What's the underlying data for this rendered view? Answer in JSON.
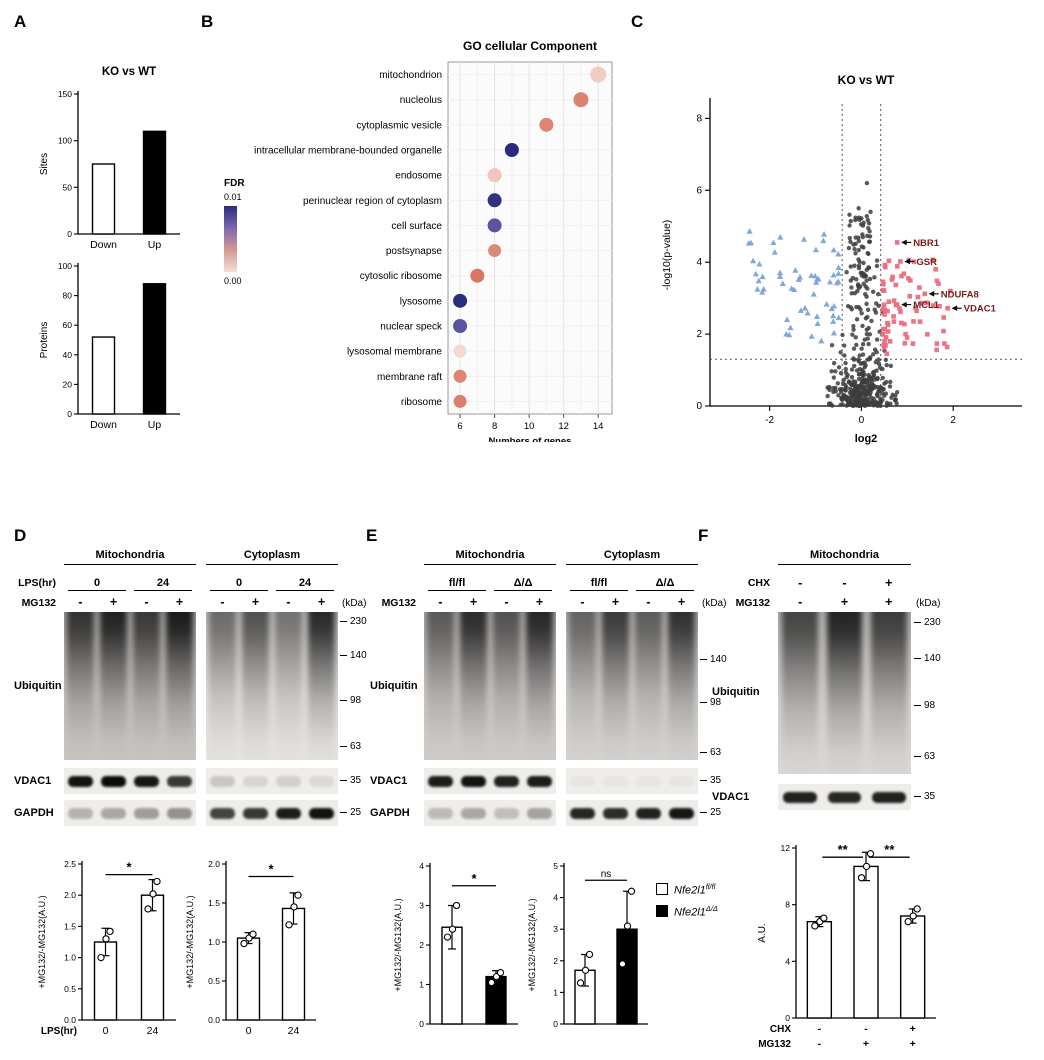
{
  "labels": {
    "A": "A",
    "B": "B",
    "C": "C",
    "D": "D",
    "E": "E",
    "F": "F"
  },
  "legendE": [
    {
      "base": "Nfe2l1",
      "sup": "fl/fl",
      "color": "#ffffff"
    },
    {
      "base": "Nfe2l1",
      "sup": "Δ/Δ",
      "color": "#000000"
    }
  ],
  "chart_data": [
    {
      "id": "A-sites",
      "type": "bar",
      "title": "KO vs WT",
      "ylabel": "Sites",
      "ylim": [
        0,
        150
      ],
      "yticks": [
        0,
        50,
        100,
        150
      ],
      "categories": [
        "Down",
        "Up"
      ],
      "values": [
        75,
        110
      ],
      "bar_colors": [
        "#ffffff",
        "#000000"
      ],
      "xrows": [
        {
          "label": "",
          "cells": [
            "Down",
            "Up"
          ]
        }
      ]
    },
    {
      "id": "A-proteins",
      "type": "bar",
      "ylabel": "Proteins",
      "ylim": [
        0,
        100
      ],
      "yticks": [
        0,
        20,
        40,
        60,
        80,
        100
      ],
      "categories": [
        "Down",
        "Up"
      ],
      "values": [
        52,
        88
      ],
      "bar_colors": [
        "#ffffff",
        "#000000"
      ],
      "xrows": [
        {
          "label": "",
          "cells": [
            "Down",
            "Up"
          ]
        }
      ]
    },
    {
      "id": "B-go",
      "type": "scatter",
      "title": "GO cellular Component",
      "xlabel": "Numbers of genes",
      "xlim": [
        5.3,
        14.8
      ],
      "xticks": [
        6,
        8,
        10,
        12,
        14
      ],
      "fdr_legend": {
        "title": "FDR",
        "max_label": "0.01",
        "min_label": "0.00",
        "gradient": [
          "#2d2a7d",
          "#7a68b0",
          "#d49a92",
          "#f6ddd5"
        ]
      },
      "rows": [
        {
          "term": "mitochondrion",
          "genes": 14,
          "fdr": 0.0005,
          "color": "#f2ccc3",
          "size": 8
        },
        {
          "term": "nucleolus",
          "genes": 13,
          "fdr": 0.002,
          "color": "#dd8271",
          "size": 7.5
        },
        {
          "term": "cytoplasmic vesicle",
          "genes": 11,
          "fdr": 0.002,
          "color": "#dd8472",
          "size": 7
        },
        {
          "term": "intracellular membrane-bounded organelle",
          "genes": 9,
          "fdr": 0.009,
          "color": "#2c2a7e",
          "size": 7
        },
        {
          "term": "endosome",
          "genes": 8,
          "fdr": 0.001,
          "color": "#f0c5bb",
          "size": 7
        },
        {
          "term": "perinuclear region of cytoplasm",
          "genes": 8,
          "fdr": 0.009,
          "color": "#35317f",
          "size": 7
        },
        {
          "term": "cell surface",
          "genes": 8,
          "fdr": 0.007,
          "color": "#5c53a0",
          "size": 7
        },
        {
          "term": "postsynapse",
          "genes": 8,
          "fdr": 0.002,
          "color": "#d98a7b",
          "size": 6.5
        },
        {
          "term": "cytosolic ribosome",
          "genes": 7,
          "fdr": 0.003,
          "color": "#d97666",
          "size": 7
        },
        {
          "term": "lysosome",
          "genes": 6,
          "fdr": 0.009,
          "color": "#282d7c",
          "size": 7
        },
        {
          "term": "nuclear speck",
          "genes": 6,
          "fdr": 0.007,
          "color": "#5b52a0",
          "size": 7
        },
        {
          "term": "lysosomal membrane",
          "genes": 6,
          "fdr": 0.0005,
          "color": "#f5d8d0",
          "size": 6.5
        },
        {
          "term": "membrane raft",
          "genes": 6,
          "fdr": 0.002,
          "color": "#dd8472",
          "size": 6.5
        },
        {
          "term": "ribosome",
          "genes": 6,
          "fdr": 0.002,
          "color": "#db7f6e",
          "size": 6.5
        }
      ]
    },
    {
      "id": "C-volcano",
      "type": "scatter",
      "title": "KO vs WT",
      "xlabel": "log2",
      "ylabel": "-log10(p-value)",
      "xlim": [
        -3.3,
        3.5
      ],
      "ylim": [
        0,
        8.4
      ],
      "xticks": [
        -2,
        0,
        2
      ],
      "yticks": [
        0,
        2,
        4,
        6,
        8
      ],
      "vlines": [
        -0.42,
        0.42
      ],
      "hline": 1.3,
      "seed": 20240,
      "clusters": {
        "gray": {
          "count": 430,
          "shape": "circle",
          "color": "#3d3d3d"
        },
        "blue": {
          "count": 58,
          "shape": "triangle",
          "color": "#7ba3d6"
        },
        "red": {
          "count": 72,
          "shape": "square",
          "color": "#ea6d80"
        }
      },
      "extra_gray": [
        [
          0.12,
          6.2
        ],
        [
          -0.06,
          5.5
        ],
        [
          0.2,
          5.4
        ]
      ],
      "label_color": "#7a1c1c",
      "genes": [
        {
          "name": "NBR1",
          "x": 0.78,
          "y": 4.55
        },
        {
          "name": "GSR",
          "x": 0.85,
          "y": 4.02
        },
        {
          "name": "NDUFA8",
          "x": 1.38,
          "y": 3.12
        },
        {
          "name": "MCL1",
          "x": 0.78,
          "y": 2.82
        },
        {
          "name": "VDAC1",
          "x": 1.88,
          "y": 2.72
        }
      ]
    },
    {
      "id": "D-mito-quant",
      "type": "bar",
      "ylabel": "+MG132/-MG132(A.U.)",
      "ylim": [
        0,
        2.5
      ],
      "yticks": [
        0,
        0.5,
        1,
        1.5,
        2,
        2.5
      ],
      "ydec": 1,
      "categories": [
        "0",
        "24"
      ],
      "values": [
        1.25,
        2.0
      ],
      "errors": [
        0.22,
        0.25
      ],
      "dots": [
        [
          1.0,
          1.3,
          1.42
        ],
        [
          1.78,
          2.02,
          2.22
        ]
      ],
      "bar_colors": [
        "#ffffff",
        "#ffffff"
      ],
      "sig": [
        {
          "a": 0,
          "b": 1,
          "text": "*",
          "y": 2.33
        }
      ],
      "xrows": [
        {
          "label": "LPS(hr)",
          "cells": [
            "0",
            "24"
          ]
        }
      ]
    },
    {
      "id": "D-cyto-quant",
      "type": "bar",
      "ylabel": "+MG132/-MG132(A.U.)",
      "ylim": [
        0,
        2.0
      ],
      "yticks": [
        0,
        0.5,
        1,
        1.5,
        2
      ],
      "ydec": 1,
      "categories": [
        "0",
        "24"
      ],
      "values": [
        1.05,
        1.43
      ],
      "errors": [
        0.07,
        0.2
      ],
      "dots": [
        [
          0.98,
          1.05,
          1.1
        ],
        [
          1.22,
          1.45,
          1.6
        ]
      ],
      "bar_colors": [
        "#ffffff",
        "#ffffff"
      ],
      "sig": [
        {
          "a": 0,
          "b": 1,
          "text": "*",
          "y": 1.84
        }
      ],
      "xrows": [
        {
          "label": "",
          "cells": [
            "0",
            "24"
          ]
        }
      ]
    },
    {
      "id": "E-mito-quant",
      "type": "bar",
      "ylabel": "+MG132/-MG132(A.U.)",
      "ylim": [
        0,
        4
      ],
      "yticks": [
        0,
        1,
        2,
        3,
        4
      ],
      "ydec": 0,
      "categories": [
        "fl/fl",
        "Δ/Δ"
      ],
      "values": [
        2.45,
        1.2
      ],
      "errors": [
        0.55,
        0.15
      ],
      "dots": [
        [
          2.2,
          2.4,
          3.0
        ],
        [
          1.05,
          1.2,
          1.3
        ]
      ],
      "bar_colors": [
        "#ffffff",
        "#000000"
      ],
      "sig": [
        {
          "a": 0,
          "b": 1,
          "text": "*",
          "y": 3.5
        }
      ]
    },
    {
      "id": "E-cyto-quant",
      "type": "bar",
      "ylabel": "+MG132/-MG132(A.U.)",
      "ylim": [
        0,
        5
      ],
      "yticks": [
        0,
        1,
        2,
        3,
        4,
        5
      ],
      "ydec": 0,
      "categories": [
        "fl/fl",
        "Δ/Δ"
      ],
      "values": [
        1.7,
        3.0
      ],
      "errors": [
        0.5,
        1.2
      ],
      "dots": [
        [
          1.3,
          1.7,
          2.2
        ],
        [
          1.9,
          3.1,
          4.2
        ]
      ],
      "bar_colors": [
        "#ffffff",
        "#000000"
      ],
      "sig": [
        {
          "a": 0,
          "b": 1,
          "text": "ns",
          "y": 4.55
        }
      ]
    },
    {
      "id": "F-quant",
      "type": "bar",
      "ylabel": "A.U.",
      "ylim": [
        0,
        12
      ],
      "yticks": [
        0,
        4,
        8,
        12
      ],
      "ydec": 0,
      "values": [
        6.8,
        10.7,
        7.2
      ],
      "errors": [
        0.35,
        1.0,
        0.5
      ],
      "dots": [
        [
          6.5,
          6.8,
          7.05
        ],
        [
          9.9,
          10.7,
          11.6
        ],
        [
          6.8,
          7.2,
          7.7
        ]
      ],
      "bar_colors": [
        "#ffffff",
        "#ffffff",
        "#ffffff"
      ],
      "sig": [
        {
          "a": 0,
          "b": 1,
          "text": "**",
          "y": 11.35,
          "inset": 3
        },
        {
          "a": 1,
          "b": 2,
          "text": "**",
          "y": 11.35,
          "inset": 3
        }
      ],
      "xrows": [
        {
          "label": "CHX",
          "cells": [
            "-",
            "-",
            "+"
          ],
          "bold": true
        },
        {
          "label": "MG132",
          "cells": [
            "-",
            "+",
            "+"
          ],
          "bold": true
        }
      ]
    }
  ],
  "blots": {
    "D": {
      "groups": [
        "Mitochondria",
        "Cytoplasm"
      ],
      "row1": {
        "label": "LPS(hr)",
        "cells": [
          "0",
          "24",
          "0",
          "24"
        ]
      },
      "row2": {
        "label": "MG132",
        "cells": [
          "-",
          "+",
          "-",
          "+",
          "-",
          "+",
          "-",
          "+"
        ]
      },
      "kda": "(kDa)",
      "smear_label": "Ubiquitin",
      "markers": [
        "230",
        "140",
        "98",
        "63"
      ],
      "smear_bg": [
        "#c9c5c1",
        "#e7e4e1"
      ],
      "smear_lanes": [
        [
          0.82,
          0.95,
          0.78,
          1.0
        ],
        [
          0.5,
          0.66,
          0.45,
          0.92
        ]
      ],
      "bands": [
        {
          "label": "VDAC1",
          "marker": "35",
          "lanes": [
            [
              0.97,
              1.0,
              0.95,
              0.8
            ],
            [
              0.16,
              0.1,
              0.12,
              0.08
            ]
          ]
        },
        {
          "label": "GAPDH",
          "marker": "25",
          "lanes": [
            [
              0.25,
              0.3,
              0.35,
              0.4
            ],
            [
              0.75,
              0.8,
              0.92,
              0.97
            ]
          ]
        }
      ]
    },
    "E": {
      "groups": [
        "Mitochondria",
        "Cytoplasm"
      ],
      "row1": {
        "label": "",
        "cells": [
          "fl/fl",
          "Δ/Δ",
          "fl/fl",
          "Δ/Δ"
        ]
      },
      "row2": {
        "label": "MG132",
        "cells": [
          "-",
          "+",
          "-",
          "+",
          "-",
          "+",
          "-",
          "+"
        ]
      },
      "kda": "(kDa)",
      "smear_label": "Ubiquitin",
      "markers": [
        "140",
        "98",
        "63"
      ],
      "smear_bg": [
        "#d0ccc9",
        "#d5d2cf"
      ],
      "smear_lanes": [
        [
          0.55,
          0.88,
          0.6,
          0.92
        ],
        [
          0.5,
          0.78,
          0.55,
          0.85
        ]
      ],
      "bands": [
        {
          "label": "VDAC1",
          "marker": "35",
          "lanes": [
            [
              0.92,
              0.97,
              0.9,
              0.92
            ],
            [
              0.03,
              0.03,
              0.03,
              0.03
            ]
          ]
        },
        {
          "label": "GAPDH",
          "marker": "25",
          "lanes": [
            [
              0.22,
              0.3,
              0.2,
              0.32
            ],
            [
              0.88,
              0.85,
              0.9,
              0.95
            ]
          ]
        }
      ]
    },
    "F": {
      "groups": [
        "Mitochondria"
      ],
      "row1": {
        "label": "CHX",
        "cells": [
          "-",
          "-",
          "+"
        ]
      },
      "row2": {
        "label": "MG132",
        "cells": [
          "-",
          "+",
          "+"
        ]
      },
      "kda": "(kDa)",
      "smear_label": "Ubiquitin",
      "markers": [
        "230",
        "140",
        "98",
        "63"
      ],
      "smear_bg": [
        "#dbd8d5"
      ],
      "smear_lanes": [
        [
          0.72,
          0.95,
          0.78
        ]
      ],
      "bands": [
        {
          "label": "VDAC1",
          "marker": "35",
          "lanes": [
            [
              0.9,
              0.88,
              0.9
            ]
          ]
        }
      ]
    }
  }
}
